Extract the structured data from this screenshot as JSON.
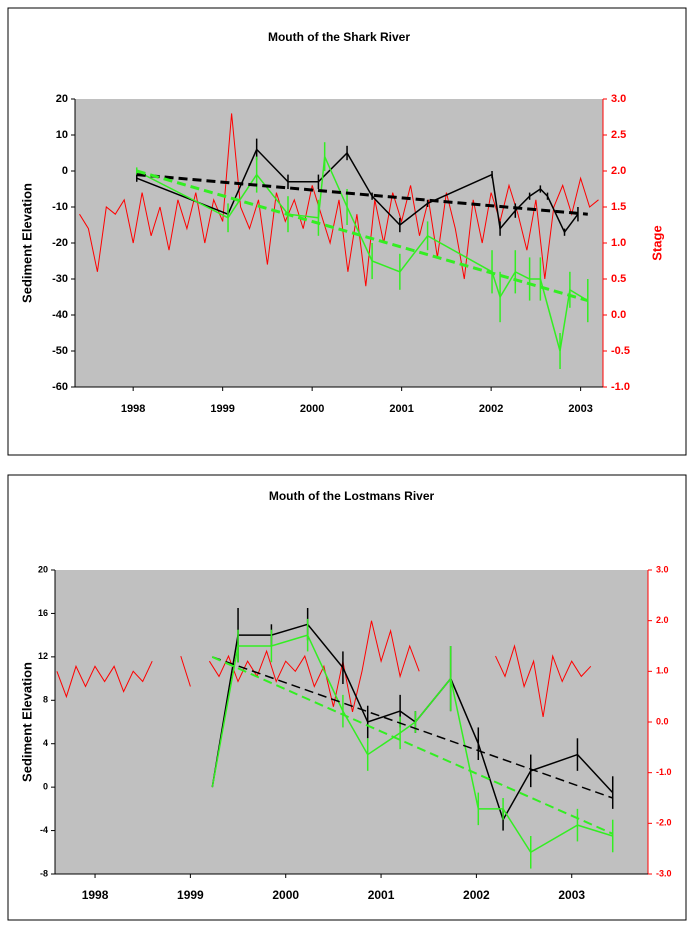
{
  "chart_data": [
    {
      "type": "line",
      "title": "Mouth of the Shark River",
      "y_label": "Sediment Elevation",
      "y2_label": "Stage",
      "xlim": [
        1997.85,
        2003.75
      ],
      "xticks": [
        {
          "value": 1998.5,
          "label": "1998"
        },
        {
          "value": 1999.5,
          "label": "1999"
        },
        {
          "value": 2000.5,
          "label": "2000"
        },
        {
          "value": 2001.5,
          "label": "2001"
        },
        {
          "value": 2002.5,
          "label": "2002"
        },
        {
          "value": 2003.5,
          "label": "2003"
        }
      ],
      "ylim": [
        -60,
        20
      ],
      "yticks": [
        -60,
        -50,
        -40,
        -30,
        -20,
        -10,
        0,
        10,
        20
      ],
      "y2lim": [
        -1,
        3
      ],
      "y2ticks": [
        {
          "value": -1,
          "label": "-1.0"
        },
        -0.5,
        {
          "value": 0,
          "label": "0.0"
        },
        0.5,
        {
          "value": 1,
          "label": "1.0"
        },
        1.5,
        {
          "value": 2,
          "label": "2.0"
        },
        2.5,
        {
          "value": 3,
          "label": "3.0"
        }
      ],
      "series": [
        {
          "color": "#ff0000",
          "axis": "y2",
          "x": [
            1997.9,
            1998.0,
            1998.1,
            1998.2,
            1998.3,
            1998.4,
            1998.5,
            1998.6,
            1998.7,
            1998.8,
            1998.9,
            1999.0,
            1999.1,
            1999.2,
            1999.3,
            1999.4,
            1999.5,
            1999.6,
            1999.7,
            1999.8,
            1999.9,
            2000.0,
            2000.1,
            2000.2,
            2000.3,
            2000.4,
            2000.5,
            2000.6,
            2000.7,
            2000.8,
            2000.9,
            2001.0,
            2001.1,
            2001.2,
            2001.3,
            2001.4,
            2001.5,
            2001.6,
            2001.7,
            2001.8,
            2001.9,
            2002.0,
            2002.1,
            2002.2,
            2002.3,
            2002.4,
            2002.5,
            2002.6,
            2002.7,
            2002.8,
            2002.9,
            2003.0,
            2003.1,
            2003.2,
            2003.3,
            2003.4,
            2003.5,
            2003.6,
            2003.7
          ],
          "values": [
            1.4,
            1.2,
            0.6,
            1.5,
            1.4,
            1.6,
            1.0,
            1.7,
            1.1,
            1.5,
            0.9,
            1.6,
            1.2,
            1.7,
            1.0,
            1.6,
            1.3,
            2.8,
            1.5,
            1.2,
            1.6,
            0.7,
            1.7,
            1.3,
            1.6,
            1.2,
            1.8,
            1.4,
            1.0,
            1.6,
            0.6,
            1.4,
            0.4,
            1.6,
            1.0,
            1.7,
            1.3,
            1.8,
            1.1,
            1.6,
            0.8,
            1.7,
            1.2,
            0.5,
            1.6,
            1.0,
            1.7,
            1.3,
            1.8,
            1.4,
            0.9,
            1.6,
            0.5,
            1.5,
            1.8,
            1.4,
            1.9,
            1.5,
            1.6
          ]
        },
        {
          "color": "#000000",
          "width": 1.5,
          "x": [
            1998.54,
            1999.56,
            1999.88,
            2000.23,
            2000.57,
            2000.89,
            2001.17,
            2001.48,
            2001.79,
            2002.51,
            2002.6,
            2002.77,
            2002.93,
            2003.05,
            2003.13,
            2003.32,
            2003.47
          ],
          "values": [
            -2,
            -12,
            6,
            -3,
            -3,
            5,
            -7,
            -15,
            -9,
            -1,
            -16,
            -11,
            -7,
            -5,
            -7,
            -17,
            -12
          ],
          "errors": [
            1,
            1,
            3,
            2,
            2,
            2,
            1,
            2,
            1,
            1,
            2,
            2,
            1,
            1,
            1,
            1,
            2
          ]
        },
        {
          "color": "#33ee22",
          "width": 1.5,
          "x": [
            1998.54,
            1999.56,
            1999.88,
            2000.23,
            2000.57,
            2000.64,
            2000.89,
            2001.17,
            2001.48,
            2001.79,
            2002.51,
            2002.6,
            2002.77,
            2002.93,
            2003.05,
            2003.27,
            2003.38,
            2003.58
          ],
          "values": [
            0,
            -13,
            -1,
            -12,
            -13,
            4,
            -10,
            -25,
            -28,
            -18,
            -28,
            -35,
            -28,
            -30,
            -30,
            -50,
            -33,
            -36
          ],
          "errors": [
            1,
            4,
            5,
            5,
            5,
            4,
            5,
            5,
            5,
            4,
            6,
            7,
            6,
            6,
            6,
            5,
            5,
            6
          ]
        },
        {
          "color": "#000000",
          "width": 3,
          "dash": true,
          "x": [
            1998.54,
            2003.58
          ],
          "values": [
            -1,
            -12
          ]
        },
        {
          "color": "#33ee22",
          "width": 3,
          "dash": true,
          "x": [
            1998.54,
            2003.58
          ],
          "values": [
            0,
            -36
          ]
        }
      ]
    },
    {
      "type": "line",
      "title": "Mouth of the Lostmans River",
      "y_label": "Sediment Elevation",
      "y2_label": "Stage",
      "xlim": [
        1998.08,
        2004.3
      ],
      "xticks": [
        {
          "value": 1998.5,
          "label": "1998"
        },
        {
          "value": 1999.5,
          "label": "1999"
        },
        {
          "value": 2000.5,
          "label": "2000"
        },
        {
          "value": 2001.5,
          "label": "2001"
        },
        {
          "value": 2002.5,
          "label": "2002"
        },
        {
          "value": 2003.5,
          "label": "2003"
        }
      ],
      "ylim": [
        -8,
        20
      ],
      "yticks": [
        -8,
        -4,
        0,
        4,
        8,
        12,
        16,
        20
      ],
      "y2lim": [
        -3,
        3
      ],
      "y2ticks": [
        {
          "value": -3,
          "label": "-3.0"
        },
        {
          "value": -2,
          "label": "-2.0"
        },
        {
          "value": -1,
          "label": "-1.0"
        },
        {
          "value": 0,
          "label": "0.0"
        },
        {
          "value": 1,
          "label": "1.0"
        },
        {
          "value": 2,
          "label": "2.0"
        },
        {
          "value": 3,
          "label": "3.0"
        }
      ],
      "series": [
        {
          "color": "#ff0000",
          "axis": "y2",
          "x": [
            1998.1,
            1998.2,
            1998.3,
            1998.4,
            1998.5,
            1998.6,
            1998.7,
            1998.8,
            1998.9,
            1999.0,
            1999.1,
            1999.2,
            1999.3,
            1999.4,
            1999.5,
            1999.6,
            1999.7,
            1999.8,
            1999.9,
            2000.0,
            2000.1,
            2000.2,
            2000.3,
            2000.4,
            2000.5,
            2000.6,
            2000.7,
            2000.8,
            2000.9,
            2001.0,
            2001.1,
            2001.2,
            2001.3,
            2001.4,
            2001.5,
            2001.6,
            2001.7,
            2001.8,
            2001.9,
            2002.0,
            2002.1,
            2002.2,
            2002.3,
            2002.4,
            2002.5,
            2002.6,
            2002.7,
            2002.8,
            2002.9,
            2003.0,
            2003.1,
            2003.2,
            2003.3,
            2003.4,
            2003.5,
            2003.6,
            2003.7
          ],
          "values": [
            1.0,
            0.5,
            1.1,
            0.7,
            1.1,
            0.8,
            1.1,
            0.6,
            1.0,
            0.8,
            1.2,
            null,
            null,
            1.3,
            0.7,
            null,
            1.2,
            0.9,
            1.3,
            0.8,
            1.2,
            0.9,
            1.4,
            0.8,
            1.2,
            1.0,
            1.3,
            0.7,
            1.1,
            0.3,
            1.2,
            0.2,
            1.0,
            2.0,
            1.2,
            1.8,
            0.9,
            1.5,
            1.0,
            null,
            null,
            null,
            null,
            null,
            null,
            null,
            1.3,
            0.9,
            1.5,
            0.7,
            1.2,
            0.1,
            1.3,
            0.8,
            1.2,
            0.9,
            1.1
          ]
        },
        {
          "color": "#000000",
          "width": 1.5,
          "x": [
            1999.73,
            2000.0,
            2000.35,
            2000.73,
            2001.1,
            2001.36,
            2001.7,
            2001.86,
            2002.23,
            2002.52,
            2002.78,
            2003.07,
            2003.56,
            2003.93
          ],
          "values": [
            0,
            14,
            14,
            15,
            11,
            6,
            7,
            6,
            10,
            4,
            -3,
            1.5,
            3,
            -0.5
          ],
          "errors": [
            0,
            2.5,
            1,
            1.5,
            1.5,
            1.5,
            1.5,
            1,
            3,
            1.5,
            1,
            1.5,
            1.5,
            1.5
          ]
        },
        {
          "color": "#33ee22",
          "width": 1.5,
          "x": [
            1999.73,
            2000.0,
            2000.35,
            2000.73,
            2001.1,
            2001.36,
            2001.7,
            2001.86,
            2002.23,
            2002.52,
            2002.78,
            2003.07,
            2003.56,
            2003.93
          ],
          "values": [
            0,
            13,
            13,
            14,
            7,
            3,
            5,
            6,
            10,
            -2,
            -2,
            -6,
            -3.5,
            -4.5
          ],
          "errors": [
            0,
            1.5,
            1.5,
            1.5,
            1.5,
            1.5,
            1.5,
            1,
            3,
            1.5,
            1,
            1.5,
            1.5,
            1.5
          ]
        },
        {
          "color": "#000000",
          "width": 1.5,
          "dash": true,
          "x": [
            1999.73,
            2003.93
          ],
          "values": [
            12,
            -1
          ]
        },
        {
          "color": "#33ee22",
          "width": 2,
          "dash": true,
          "x": [
            1999.73,
            2003.93
          ],
          "values": [
            12,
            -4.3
          ]
        }
      ]
    }
  ]
}
